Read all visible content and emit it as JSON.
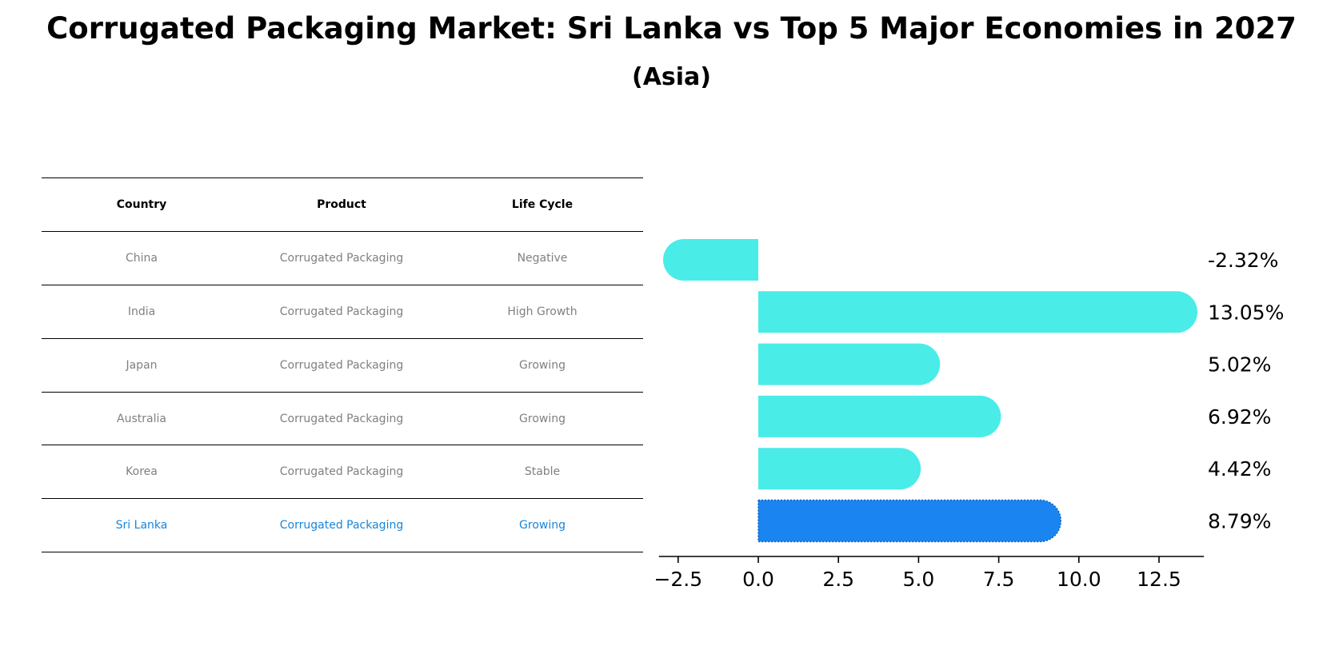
{
  "title": "Corrugated Packaging Market: Sri Lanka vs Top 5 Major Economies in 2027",
  "subtitle": "(Asia)",
  "table": {
    "headers": [
      "Country",
      "Product",
      "Life Cycle"
    ],
    "rows": [
      {
        "country": "China",
        "product": "Corrugated Packaging",
        "life_cycle": "Negative"
      },
      {
        "country": "India",
        "product": "Corrugated Packaging",
        "life_cycle": "High Growth"
      },
      {
        "country": "Japan",
        "product": "Corrugated Packaging",
        "life_cycle": "Growing"
      },
      {
        "country": "Australia",
        "product": "Corrugated Packaging",
        "life_cycle": "Growing"
      },
      {
        "country": "Korea",
        "product": "Corrugated Packaging",
        "life_cycle": "Stable"
      },
      {
        "country": "Sri Lanka",
        "product": "Corrugated Packaging",
        "life_cycle": "Growing"
      }
    ]
  },
  "colors": {
    "bar": "#4aece8",
    "highlight_bar": "#1a85f0",
    "highlight_text": "#1a85d8",
    "muted_text": "#808080"
  },
  "chart_data": {
    "type": "bar",
    "orientation": "horizontal",
    "categories": [
      "China",
      "India",
      "Japan",
      "Australia",
      "Korea",
      "Sri Lanka"
    ],
    "values": [
      -2.32,
      13.05,
      5.02,
      6.92,
      4.42,
      8.79
    ],
    "value_labels": [
      "-2.32%",
      "13.05%",
      "5.02%",
      "6.92%",
      "4.42%",
      "8.79%"
    ],
    "highlight": "Sri Lanka",
    "xticks": [
      -2.5,
      0.0,
      2.5,
      5.0,
      7.5,
      10.0,
      12.5
    ],
    "xtick_labels": [
      "−2.5",
      "0.0",
      "2.5",
      "5.0",
      "7.5",
      "10.0",
      "12.5"
    ],
    "xlim": [
      -3.1,
      13.9
    ],
    "grid": false,
    "xlabel": "",
    "ylabel": ""
  }
}
